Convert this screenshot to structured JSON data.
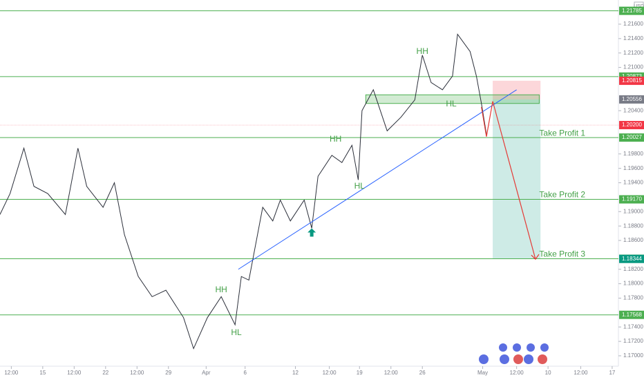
{
  "chart_data": {
    "type": "line",
    "currency": "USD",
    "x": [
      0,
      0.8,
      1.9,
      2.7,
      3.8,
      5.2,
      6.2,
      6.9,
      8.2,
      9.1,
      9.9,
      11,
      12.1,
      13.2,
      14.6,
      15.4,
      16.5,
      17.6,
      18.7,
      19.2,
      19.8,
      20.9,
      21.7,
      22.3,
      23.1,
      24.2,
      24.8,
      25.3,
      26.4,
      27.2,
      28,
      28.5,
      28.8,
      29.7,
      30.8,
      31.9,
      33,
      33.6,
      34.3,
      35.2,
      36,
      36.4,
      37.4,
      37.9,
      38.3,
      38.7
    ],
    "values": [
      1.1896,
      1.1925,
      1.1988,
      1.1935,
      1.1925,
      1.1896,
      1.1988,
      1.1935,
      1.1906,
      1.194,
      1.1868,
      1.181,
      1.1782,
      1.1791,
      1.1753,
      1.171,
      1.1753,
      1.1782,
      1.1743,
      1.181,
      1.1805,
      1.1906,
      1.1887,
      1.1916,
      1.1887,
      1.1916,
      1.1877,
      1.1949,
      1.1978,
      1.1968,
      1.1992,
      1.1944,
      1.204,
      1.2069,
      1.2012,
      1.2031,
      1.2055,
      1.2117,
      1.2079,
      1.2069,
      1.2088,
      1.2146,
      1.2122,
      1.2088,
      1.205,
      1.2007
    ],
    "color": "#2a2e39",
    "xlim": [
      0,
      49.2
    ],
    "ylim": [
      1.16856,
      1.21935
    ],
    "xticks": [
      {
        "value": 0.9,
        "label": "12:00"
      },
      {
        "value": 3.4,
        "label": "15"
      },
      {
        "value": 5.9,
        "label": "12:00"
      },
      {
        "value": 8.4,
        "label": "22"
      },
      {
        "value": 10.9,
        "label": "12:00"
      },
      {
        "value": 13.4,
        "label": "29"
      },
      {
        "value": 16.4,
        "label": "Apr"
      },
      {
        "value": 19.5,
        "label": "6"
      },
      {
        "value": 23.5,
        "label": "12"
      },
      {
        "value": 26.2,
        "label": "12:00"
      },
      {
        "value": 28.6,
        "label": "19"
      },
      {
        "value": 31.1,
        "label": "12:00"
      },
      {
        "value": 33.6,
        "label": "26"
      },
      {
        "value": 38.4,
        "label": "May"
      },
      {
        "value": 41.1,
        "label": "12:00"
      },
      {
        "value": 43.6,
        "label": "10"
      },
      {
        "value": 46.2,
        "label": "12:00"
      },
      {
        "value": 48.7,
        "label": "17"
      }
    ],
    "yticks": [
      {
        "value": 1.216,
        "label": "1.21600"
      },
      {
        "value": 1.214,
        "label": "1.21400"
      },
      {
        "value": 1.212,
        "label": "1.21200"
      },
      {
        "value": 1.21,
        "label": "1.21000"
      },
      {
        "value": 1.204,
        "label": "1.20400"
      },
      {
        "value": 1.198,
        "label": "1.19800"
      },
      {
        "value": 1.196,
        "label": "1.19600"
      },
      {
        "value": 1.194,
        "label": "1.19400"
      },
      {
        "value": 1.19,
        "label": "1.19000"
      },
      {
        "value": 1.188,
        "label": "1.18800"
      },
      {
        "value": 1.186,
        "label": "1.18600"
      },
      {
        "value": 1.182,
        "label": "1.18200"
      },
      {
        "value": 1.18,
        "label": "1.18000"
      },
      {
        "value": 1.178,
        "label": "1.17800"
      },
      {
        "value": 1.174,
        "label": "1.17400"
      },
      {
        "value": 1.172,
        "label": "1.17200"
      },
      {
        "value": 1.17,
        "label": "1.17000"
      }
    ],
    "levels": [
      {
        "value": 1.21785,
        "label": "1.21785",
        "color": "#4caf50",
        "line": "solid"
      },
      {
        "value": 1.20873,
        "label": "1.20873",
        "color": "#4caf50",
        "line": "solid"
      },
      {
        "value": 1.20815,
        "label": "1.20815",
        "color": "#f23645",
        "line": "none"
      },
      {
        "value": 1.20556,
        "label": "1.20556",
        "color": "#787b86",
        "line": "none"
      },
      {
        "value": 1.202,
        "label": "1.20200",
        "color": "#f23645",
        "line": "dotted"
      },
      {
        "value": 1.20027,
        "label": "1.20027",
        "color": "#4caf50",
        "line": "solid"
      },
      {
        "value": 1.1917,
        "label": "1.19170",
        "color": "#4caf50",
        "line": "solid"
      },
      {
        "value": 1.18346,
        "label": "1.18346",
        "color": "#4caf50",
        "line": "solid"
      },
      {
        "value": 1.18344,
        "label": "1.18344",
        "color": "#089981",
        "line": "none"
      },
      {
        "value": 1.17568,
        "label": "1.17568",
        "color": "#4caf50",
        "line": "solid"
      }
    ],
    "annotations": [
      {
        "text": "HH",
        "x": 33.6,
        "y": 1.2122
      },
      {
        "text": "HL",
        "x": 35.9,
        "y": 1.2049
      },
      {
        "text": "HH",
        "x": 26.7,
        "y": 1.2
      },
      {
        "text": "HL",
        "x": 28.6,
        "y": 1.1935
      },
      {
        "text": "HH",
        "x": 17.6,
        "y": 1.1791
      },
      {
        "text": "HL",
        "x": 18.8,
        "y": 1.1732
      }
    ],
    "targets": [
      {
        "text": "Take Profit 1",
        "x": 42.9,
        "y": 1.20027
      },
      {
        "text": "Take Profit 2",
        "x": 42.9,
        "y": 1.1917
      },
      {
        "text": "Take Profit 3",
        "x": 42.9,
        "y": 1.18346
      }
    ],
    "trendline": {
      "x": [
        18.96,
        41.1
      ],
      "y": [
        1.182,
        1.2069
      ],
      "color": "#2962ff"
    },
    "zone": {
      "x": [
        29.1,
        42.9
      ],
      "y": [
        1.205,
        1.2062
      ],
      "color": "#4caf50"
    },
    "position": {
      "x": [
        39.2,
        43
      ],
      "entry": 1.20556,
      "stop": 1.20815,
      "target": 1.18346
    },
    "projection": {
      "x": [
        38.3,
        38.7,
        39.2,
        42.6
      ],
      "y": [
        1.2045,
        1.2004,
        1.2053,
        1.1834
      ],
      "color": "#e53935"
    },
    "signal": {
      "x": 24.8,
      "y": 1.1871,
      "color": "#089981"
    }
  }
}
